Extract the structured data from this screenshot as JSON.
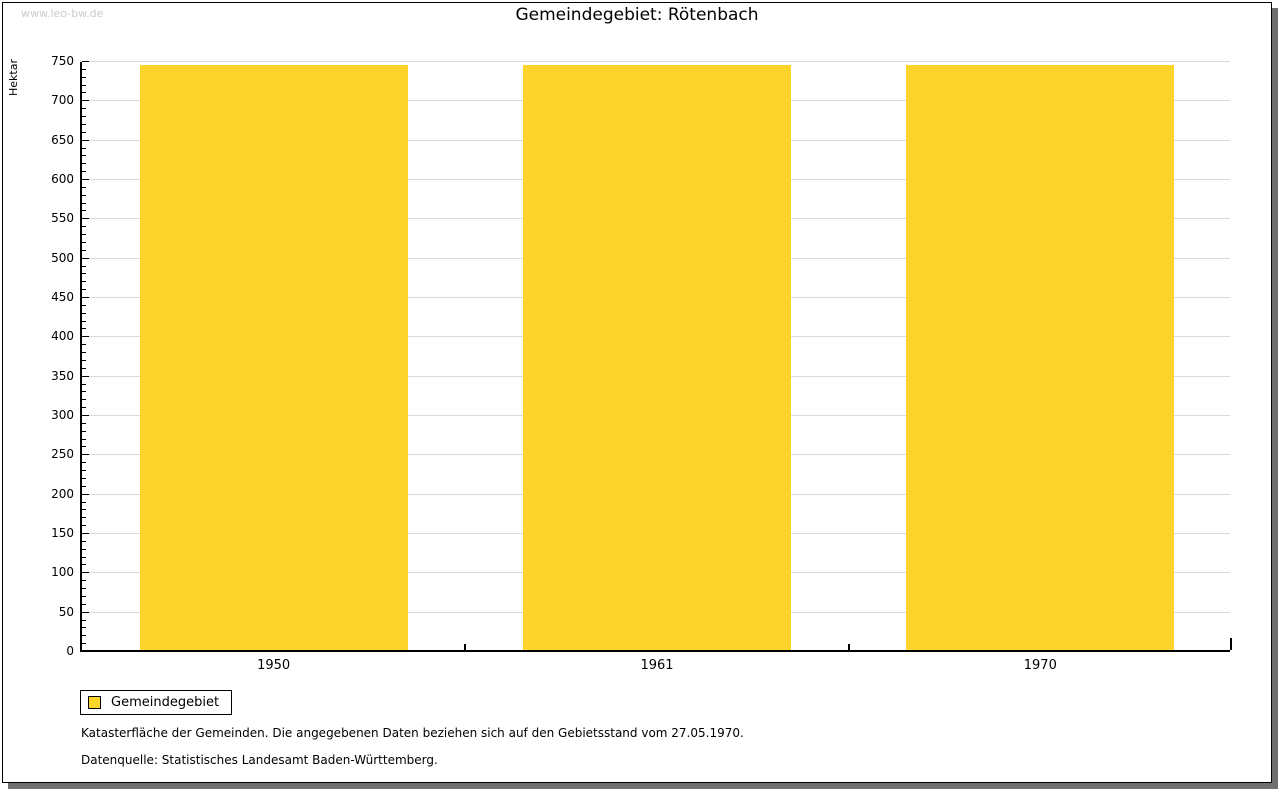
{
  "page": {
    "watermark": "www.leo-bw.de",
    "title": "Gemeindegebiet: Rötenbach"
  },
  "chart_data": {
    "type": "bar",
    "title": "Gemeindegebiet: Rötenbach",
    "categories": [
      "1950",
      "1961",
      "1970"
    ],
    "series": [
      {
        "name": "Gemeindegebiet",
        "values": [
          744,
          744,
          744
        ]
      }
    ],
    "xlabel": "",
    "ylabel": "Hektar",
    "ylim": [
      0,
      750
    ],
    "y_major_step": 50,
    "y_minor_step": 10,
    "grid": true,
    "legend_position": "bottom-left",
    "bar_color": "#FCD42B",
    "grid_color": "#DADADA",
    "axis_color": "#000000"
  },
  "legend": {
    "items": [
      {
        "label": "Gemeindegebiet",
        "color": "#FCD42B"
      }
    ]
  },
  "footer": {
    "line1": "Katasterfläche der Gemeinden. Die angegebenen Daten beziehen sich auf den Gebietsstand vom 27.05.1970.",
    "line2": "Datenquelle: Statistisches Landesamt Baden-Württemberg."
  }
}
